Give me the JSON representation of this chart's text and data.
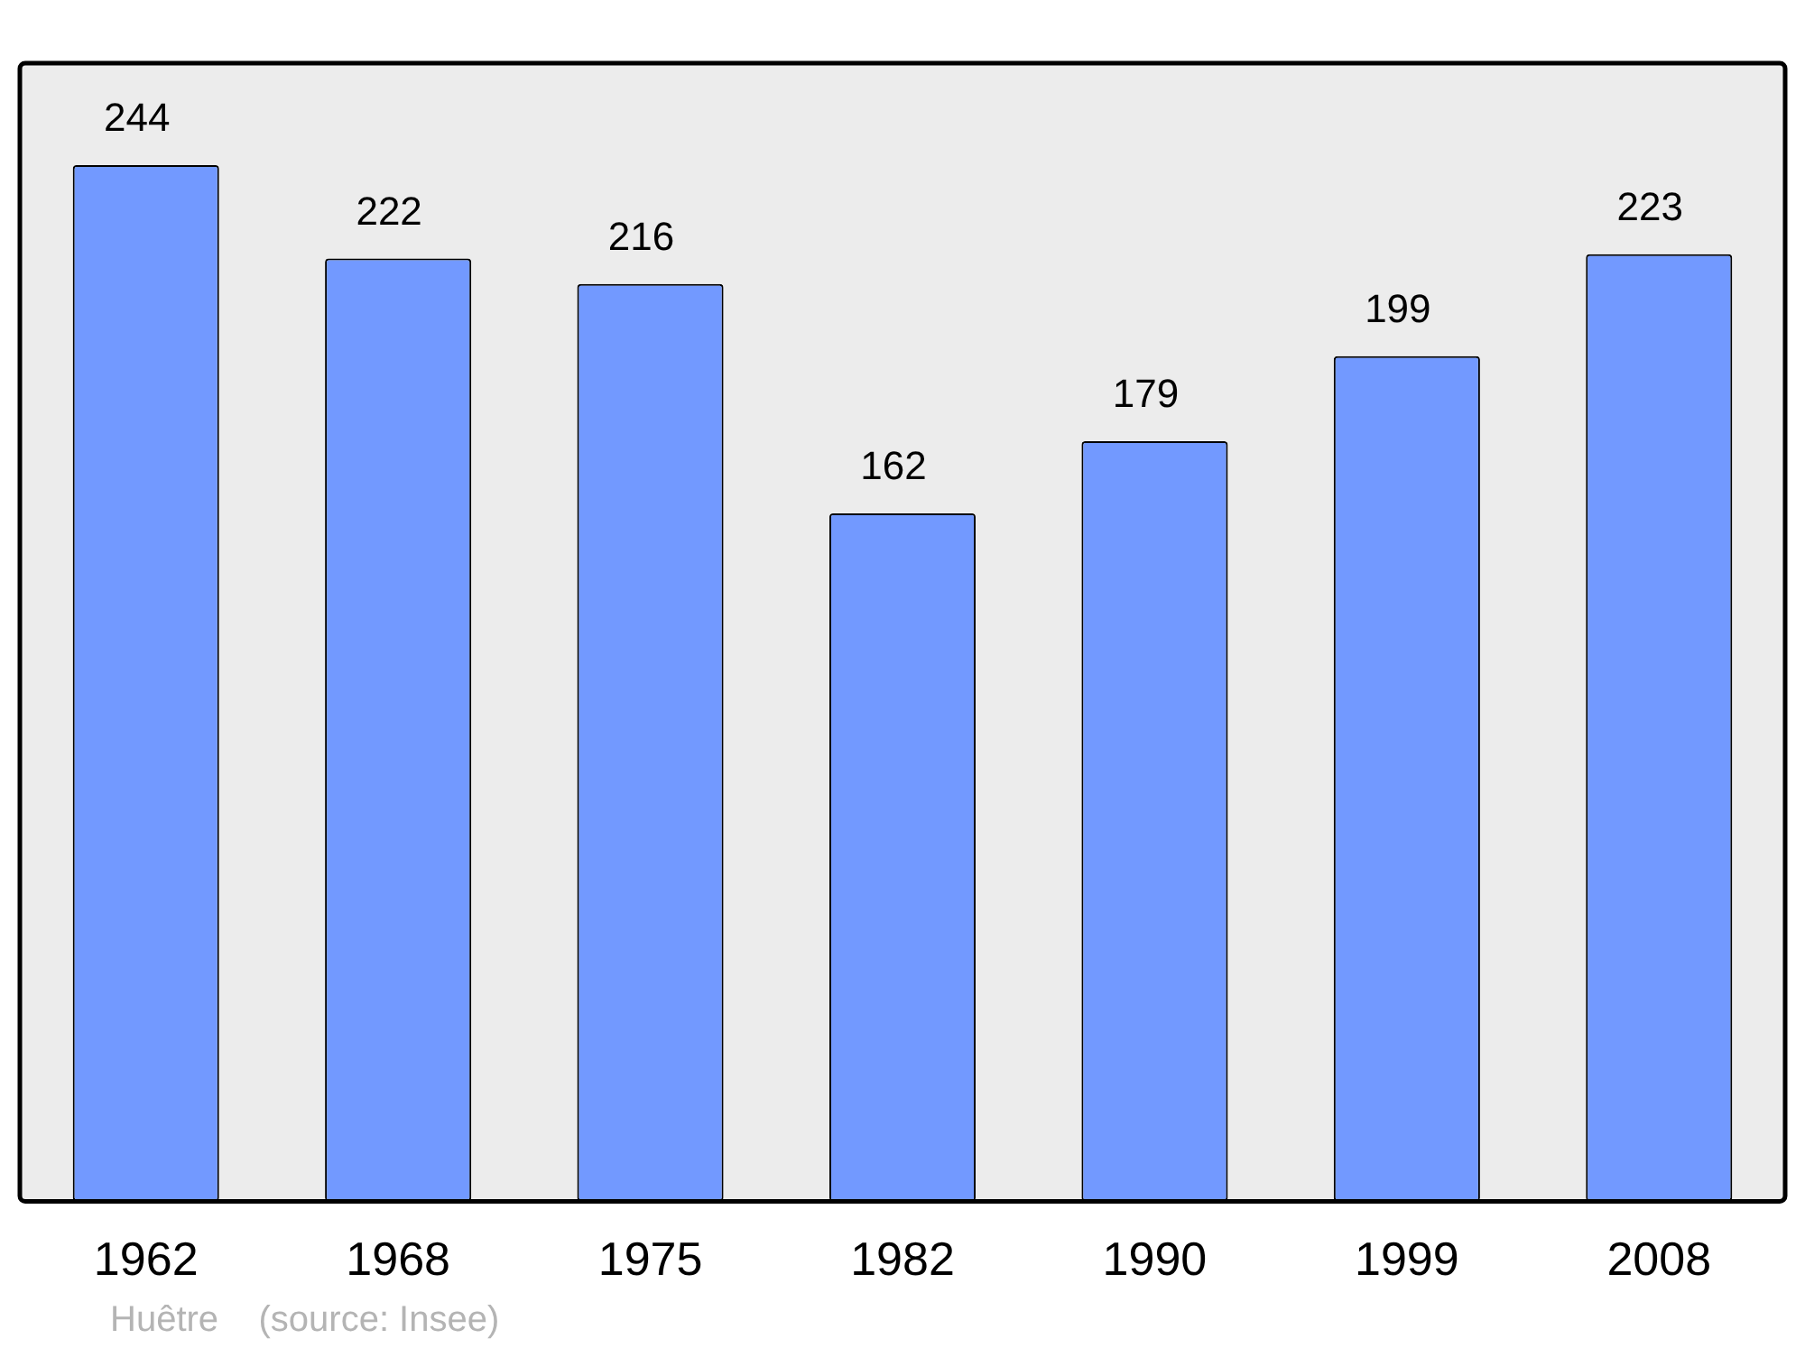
{
  "chart_data": {
    "type": "bar",
    "categories": [
      "1962",
      "1968",
      "1975",
      "1982",
      "1990",
      "1999",
      "2008"
    ],
    "values": [
      244,
      222,
      216,
      162,
      179,
      199,
      223
    ],
    "color": "#7299ff",
    "ylim": [
      0,
      268
    ],
    "data_labels": true,
    "grid": false,
    "legend": false,
    "tick_labels": "x",
    "annotations": [
      "Huêtre    (source: Insee)"
    ]
  }
}
